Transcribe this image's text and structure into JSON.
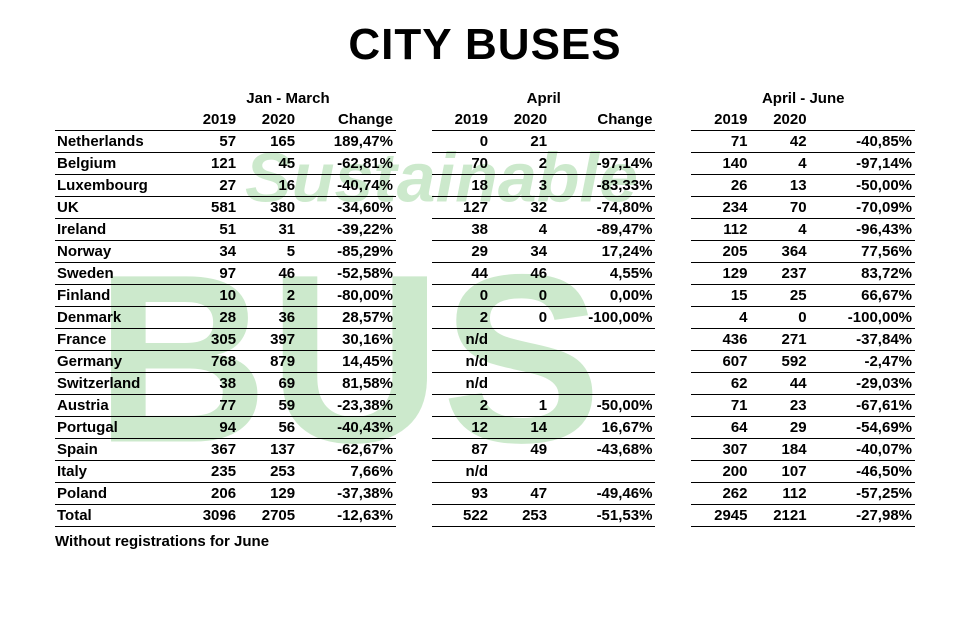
{
  "title": "CITY BUSES",
  "footnote": "Without registrations for June",
  "watermark": {
    "line1": "Sustainable",
    "line2": "BUS",
    "fill": "#8fcf8f",
    "opacity": 0.45,
    "line1_fontsize": 70,
    "line2_fontsize": 240
  },
  "colors": {
    "text": "#000000",
    "background": "#ffffff",
    "rule": "#000000"
  },
  "typography": {
    "title_fontsize": 44,
    "title_weight": 900,
    "body_fontsize": 15,
    "body_weight": "bold",
    "family": "Arial"
  },
  "table": {
    "periods": [
      {
        "label": "Jan - March",
        "cols": [
          "2019",
          "2020",
          "Change"
        ]
      },
      {
        "label": "April",
        "cols": [
          "2019",
          "2020",
          "Change"
        ]
      },
      {
        "label": "April - June",
        "cols": [
          "2019",
          "2020",
          ""
        ]
      }
    ],
    "col_align": "right",
    "country_align": "left",
    "rows": [
      {
        "country": "Netherlands",
        "p1": [
          "57",
          "165",
          "189,47%"
        ],
        "p2": [
          "0",
          "21",
          ""
        ],
        "p3": [
          "71",
          "42",
          "-40,85%"
        ]
      },
      {
        "country": "Belgium",
        "p1": [
          "121",
          "45",
          "-62,81%"
        ],
        "p2": [
          "70",
          "2",
          "-97,14%"
        ],
        "p3": [
          "140",
          "4",
          "-97,14%"
        ]
      },
      {
        "country": "Luxembourg",
        "p1": [
          "27",
          "16",
          "-40,74%"
        ],
        "p2": [
          "18",
          "3",
          "-83,33%"
        ],
        "p3": [
          "26",
          "13",
          "-50,00%"
        ]
      },
      {
        "country": "UK",
        "p1": [
          "581",
          "380",
          "-34,60%"
        ],
        "p2": [
          "127",
          "32",
          "-74,80%"
        ],
        "p3": [
          "234",
          "70",
          "-70,09%"
        ]
      },
      {
        "country": "Ireland",
        "p1": [
          "51",
          "31",
          "-39,22%"
        ],
        "p2": [
          "38",
          "4",
          "-89,47%"
        ],
        "p3": [
          "112",
          "4",
          "-96,43%"
        ]
      },
      {
        "country": "Norway",
        "p1": [
          "34",
          "5",
          "-85,29%"
        ],
        "p2": [
          "29",
          "34",
          "17,24%"
        ],
        "p3": [
          "205",
          "364",
          "77,56%"
        ]
      },
      {
        "country": "Sweden",
        "p1": [
          "97",
          "46",
          "-52,58%"
        ],
        "p2": [
          "44",
          "46",
          "4,55%"
        ],
        "p3": [
          "129",
          "237",
          "83,72%"
        ]
      },
      {
        "country": "Finland",
        "p1": [
          "10",
          "2",
          "-80,00%"
        ],
        "p2": [
          "0",
          "0",
          "0,00%"
        ],
        "p3": [
          "15",
          "25",
          "66,67%"
        ]
      },
      {
        "country": "Denmark",
        "p1": [
          "28",
          "36",
          "28,57%"
        ],
        "p2": [
          "2",
          "0",
          "-100,00%"
        ],
        "p3": [
          "4",
          "0",
          "-100,00%"
        ]
      },
      {
        "country": "France",
        "p1": [
          "305",
          "397",
          "30,16%"
        ],
        "p2": [
          "n/d",
          "",
          ""
        ],
        "p3": [
          "436",
          "271",
          "-37,84%"
        ]
      },
      {
        "country": "Germany",
        "p1": [
          "768",
          "879",
          "14,45%"
        ],
        "p2": [
          "n/d",
          "",
          ""
        ],
        "p3": [
          "607",
          "592",
          "-2,47%"
        ]
      },
      {
        "country": "Switzerland",
        "p1": [
          "38",
          "69",
          "81,58%"
        ],
        "p2": [
          "n/d",
          "",
          ""
        ],
        "p3": [
          "62",
          "44",
          "-29,03%"
        ]
      },
      {
        "country": "Austria",
        "p1": [
          "77",
          "59",
          "-23,38%"
        ],
        "p2": [
          "2",
          "1",
          "-50,00%"
        ],
        "p3": [
          "71",
          "23",
          "-67,61%"
        ]
      },
      {
        "country": "Portugal",
        "p1": [
          "94",
          "56",
          "-40,43%"
        ],
        "p2": [
          "12",
          "14",
          "16,67%"
        ],
        "p3": [
          "64",
          "29",
          "-54,69%"
        ]
      },
      {
        "country": "Spain",
        "p1": [
          "367",
          "137",
          "-62,67%"
        ],
        "p2": [
          "87",
          "49",
          "-43,68%"
        ],
        "p3": [
          "307",
          "184",
          "-40,07%"
        ]
      },
      {
        "country": "Italy",
        "p1": [
          "235",
          "253",
          "7,66%"
        ],
        "p2": [
          "n/d",
          "",
          ""
        ],
        "p3": [
          "200",
          "107",
          "-46,50%"
        ]
      },
      {
        "country": "Poland",
        "p1": [
          "206",
          "129",
          "-37,38%"
        ],
        "p2": [
          "93",
          "47",
          "-49,46%"
        ],
        "p3": [
          "262",
          "112",
          "-57,25%"
        ]
      },
      {
        "country": "Total",
        "p1": [
          "3096",
          "2705",
          "-12,63%"
        ],
        "p2": [
          "522",
          "253",
          "-51,53%"
        ],
        "p3": [
          "2945",
          "2121",
          "-27,98%"
        ]
      }
    ]
  }
}
